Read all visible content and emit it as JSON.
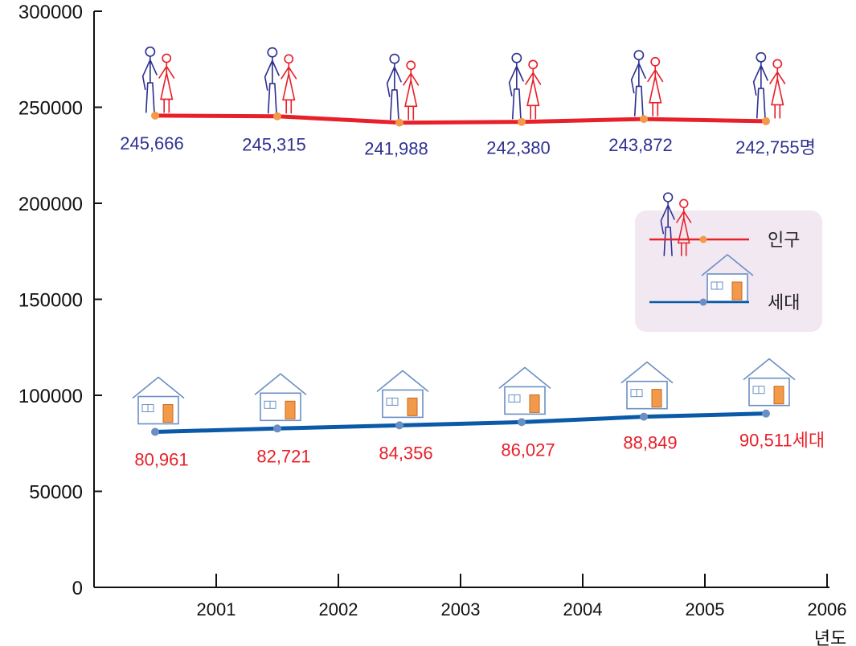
{
  "chart_data": {
    "type": "line",
    "x_unit_label": "년도",
    "x_ticks": [
      "2001",
      "2002",
      "2003",
      "2004",
      "2005",
      "2006"
    ],
    "y_ticks": [
      "0",
      "50000",
      "100000",
      "150000",
      "200000",
      "250000",
      "300000"
    ],
    "ylim": [
      0,
      300000
    ],
    "grid": false,
    "legend_position": "right",
    "points_x": [
      2000.5,
      2001.5,
      2002.5,
      2003.5,
      2004.5,
      2005.5
    ],
    "series": [
      {
        "name": "인구",
        "color": "#e8202a",
        "marker_color": "#f29a4a",
        "label_color": "#2e3191",
        "icon": "couple-icon",
        "values": [
          245666,
          245315,
          241988,
          242380,
          243872,
          242755
        ],
        "labels": [
          "245,666",
          "245,315",
          "241,988",
          "242,380",
          "243,872",
          "242,755명"
        ]
      },
      {
        "name": "세대",
        "color": "#0a5aa8",
        "marker_color": "#6a8fc4",
        "label_color": "#e8202a",
        "icon": "house-icon",
        "values": [
          80961,
          82721,
          84356,
          86027,
          88849,
          90511
        ],
        "labels": [
          "80,961",
          "82,721",
          "84,356",
          "86,027",
          "88,849",
          "90,511세대"
        ]
      }
    ]
  }
}
